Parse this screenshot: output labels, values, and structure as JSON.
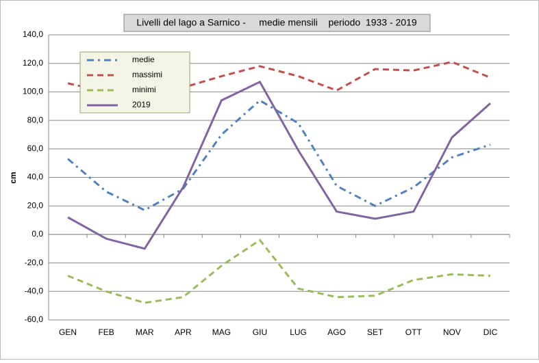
{
  "chart_data": {
    "type": "line",
    "title": "Livelli del lago a Sarnico -     medie mensili    periodo  1933 - 2019",
    "y_label": "cm",
    "categories": [
      "GEN",
      "FEB",
      "MAR",
      "APR",
      "MAG",
      "GIU",
      "LUG",
      "AGO",
      "SET",
      "OTT",
      "NOV",
      "DIC"
    ],
    "series": [
      {
        "name": "medie",
        "color": "#4f81bd",
        "dash": "dashdot",
        "values": [
          53,
          30,
          17,
          32,
          70,
          94,
          78,
          34,
          20,
          33,
          54,
          63
        ]
      },
      {
        "name": "massimi",
        "color": "#c0504d",
        "dash": "dash",
        "values": [
          106,
          100,
          99,
          103,
          111,
          118,
          111,
          101,
          116,
          115,
          121,
          110
        ]
      },
      {
        "name": "minimi",
        "color": "#9bbb59",
        "dash": "dash",
        "values": [
          -29,
          -40,
          -48,
          -44,
          -22,
          -4,
          -38,
          -44,
          -43,
          -32,
          -28,
          -29
        ]
      },
      {
        "name": "2019",
        "color": "#8064a2",
        "dash": "solid",
        "values": [
          12,
          -3,
          -10,
          33,
          94,
          107,
          59,
          16,
          11,
          16,
          68,
          92
        ]
      }
    ],
    "ylim": [
      -60,
      140
    ],
    "yticks": [
      {
        "value": -60,
        "label": "-60,0"
      },
      {
        "value": -40,
        "label": "-40,0"
      },
      {
        "value": -20,
        "label": "-20,0"
      },
      {
        "value": 0,
        "label": "0,0"
      },
      {
        "value": 20,
        "label": "20,0"
      },
      {
        "value": 40,
        "label": "40,0"
      },
      {
        "value": 60,
        "label": "60,0"
      },
      {
        "value": 80,
        "label": "80,0"
      },
      {
        "value": 100,
        "label": "100,0"
      },
      {
        "value": 120,
        "label": "120,0"
      },
      {
        "value": 140,
        "label": "140,0"
      }
    ],
    "grid": true,
    "legend": "top-left"
  }
}
